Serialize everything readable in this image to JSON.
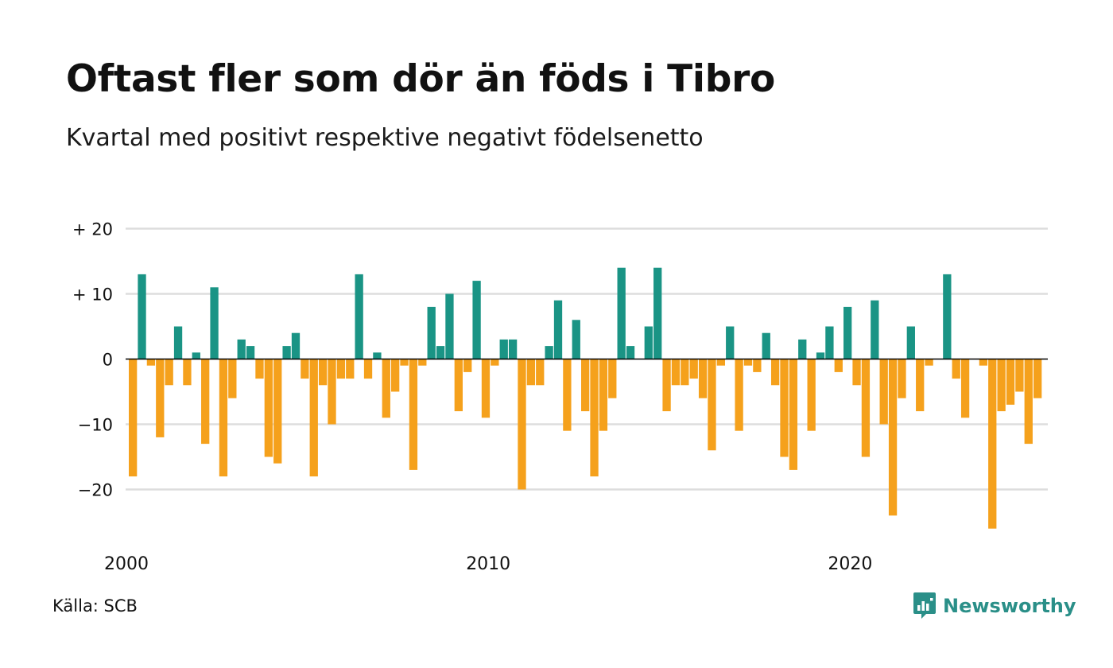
{
  "title": "Oftast fler som dör än föds i Tibro",
  "subtitle": "Kvartal med positivt respektive negativt födelsenetto",
  "source": "Källa: SCB",
  "brand": "Newsworthy",
  "colors": {
    "positive": "#1a9485",
    "negative": "#f5a11c",
    "grid": "#dddddd",
    "zero": "#000000",
    "brand": "#2a8f88"
  },
  "chart_data": {
    "type": "bar",
    "x_start": "2000 Q1",
    "x_ticks": [
      "2000",
      "2010",
      "2020"
    ],
    "y_ticks": [
      "+ 20",
      "+ 10",
      "0",
      "−10",
      "−20"
    ],
    "y_tick_values": [
      20,
      10,
      0,
      -10,
      -20
    ],
    "ylim": [
      -28,
      20
    ],
    "grid": true,
    "values": [
      -18,
      13,
      -1,
      -12,
      -4,
      5,
      -4,
      1,
      -13,
      11,
      -18,
      -6,
      3,
      2,
      -3,
      -15,
      -16,
      2,
      4,
      -3,
      -18,
      -4,
      -10,
      -3,
      -3,
      13,
      -3,
      1,
      -9,
      -5,
      -1,
      -17,
      -1,
      8,
      2,
      10,
      -8,
      -2,
      12,
      -9,
      -1,
      3,
      3,
      -20,
      -4,
      -4,
      2,
      9,
      -11,
      6,
      -8,
      -18,
      -11,
      -6,
      14,
      2,
      0,
      5,
      14,
      -8,
      -4,
      -4,
      -3,
      -6,
      -14,
      -1,
      5,
      -11,
      -1,
      -2,
      4,
      -4,
      -15,
      -17,
      3,
      -11,
      1,
      5,
      -2,
      8,
      -4,
      -15,
      9,
      -10,
      -24,
      -6,
      5,
      -8,
      -1,
      0,
      13,
      -3,
      -9,
      0,
      -1,
      -26,
      -8,
      -7,
      -5,
      -13,
      -6
    ]
  }
}
